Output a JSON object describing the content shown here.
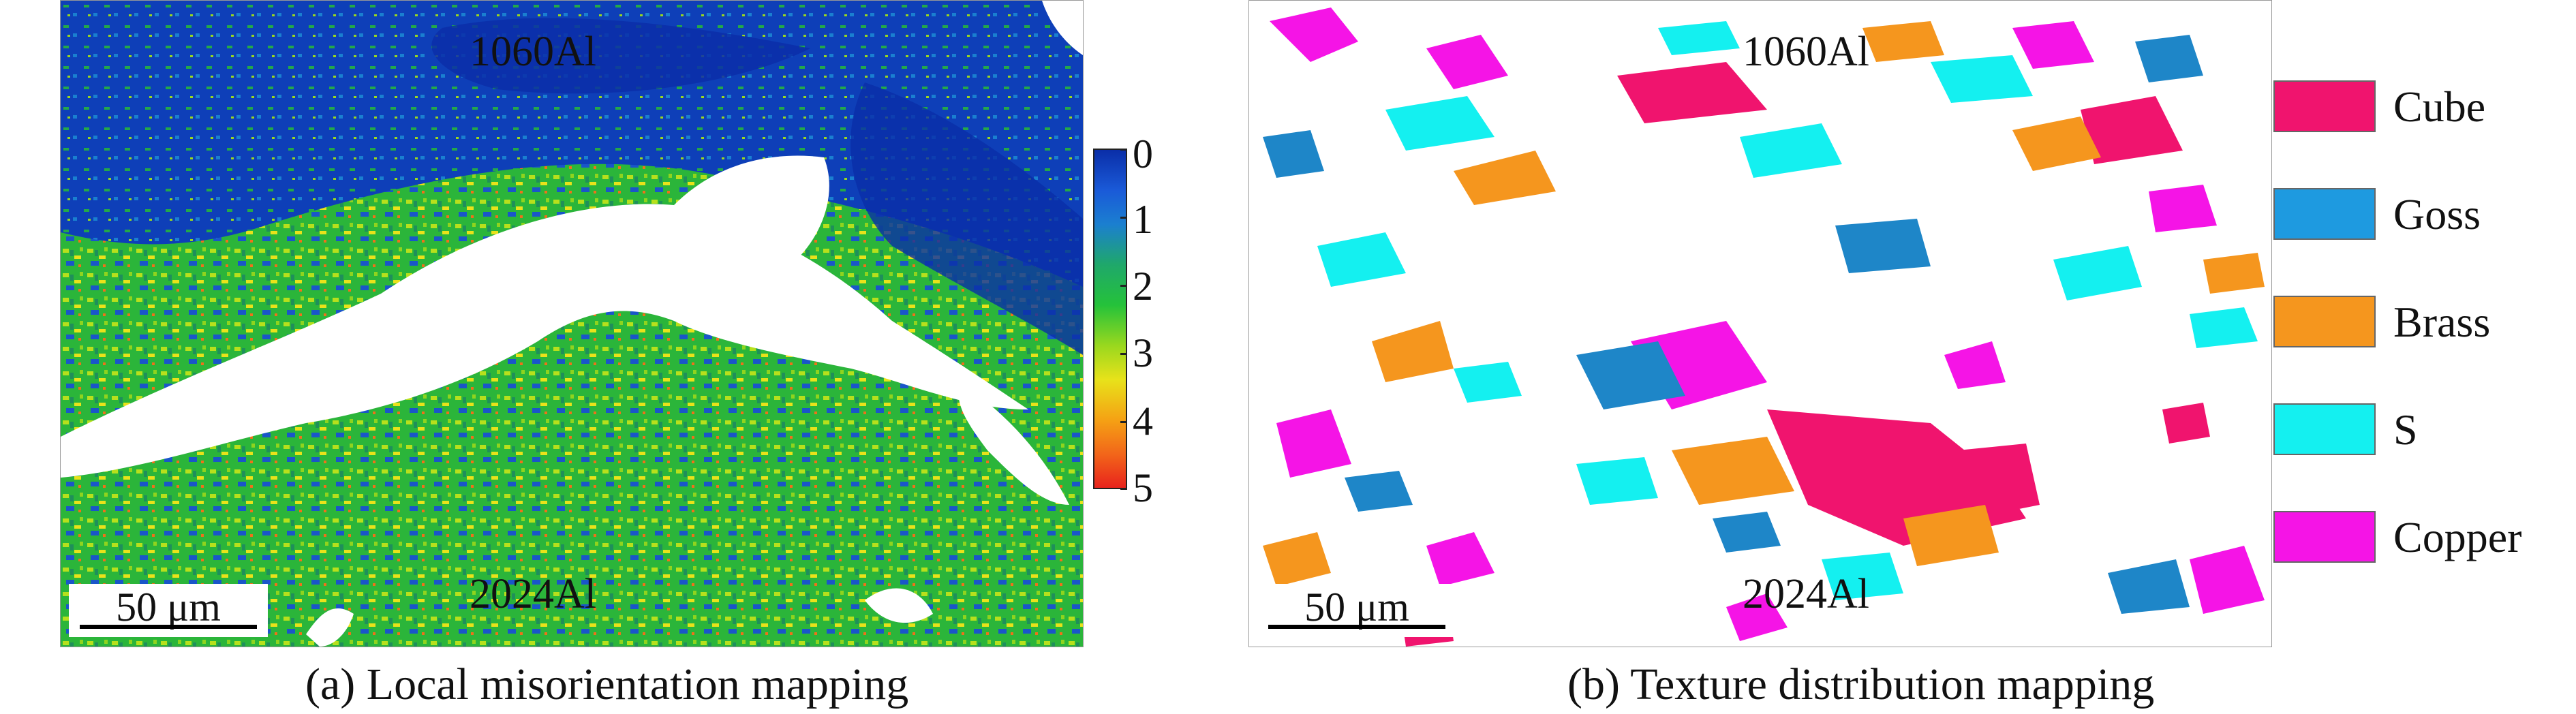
{
  "panel_a": {
    "region_top": "1060Al",
    "region_bottom": "2024Al",
    "scale_bar": "50 μm",
    "colorbar_ticks": [
      "0",
      "1",
      "2",
      "3",
      "4",
      "5"
    ],
    "caption": "(a) Local misorientation mapping",
    "colors": {
      "low": "#0a2ea8",
      "mid": "#25c23a",
      "high": "#e8231c"
    }
  },
  "panel_b": {
    "region_top": "1060Al",
    "region_bottom": "2024Al",
    "scale_bar": "50 μm",
    "caption": "(b) Texture distribution mapping",
    "legend": [
      {
        "label": "Cube",
        "color": "#f0146e"
      },
      {
        "label": "Goss",
        "color": "#1e9ae0"
      },
      {
        "label": "Brass",
        "color": "#f5961e"
      },
      {
        "label": "S",
        "color": "#14f0f0"
      },
      {
        "label": "Copper",
        "color": "#f514e6"
      }
    ]
  }
}
